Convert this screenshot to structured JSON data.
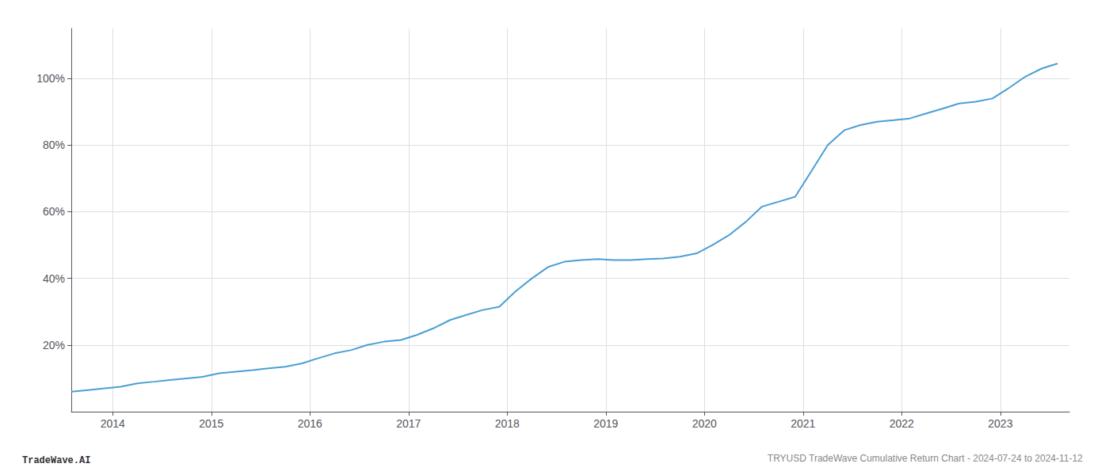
{
  "chart_data": {
    "type": "line",
    "title": "TRYUSD TradeWave Cumulative Return Chart - 2024-07-24 to 2024-11-12",
    "annotations": [
      "TradeWave.AI"
    ],
    "color": "#4a9fd4",
    "grid": true,
    "x": [
      2013.58,
      2013.75,
      2013.92,
      2014.08,
      2014.25,
      2014.42,
      2014.58,
      2014.75,
      2014.92,
      2015.08,
      2015.25,
      2015.42,
      2015.58,
      2015.75,
      2015.92,
      2016.08,
      2016.25,
      2016.42,
      2016.58,
      2016.75,
      2016.92,
      2017.08,
      2017.25,
      2017.42,
      2017.58,
      2017.75,
      2017.92,
      2018.08,
      2018.25,
      2018.42,
      2018.58,
      2018.75,
      2018.92,
      2019.08,
      2019.25,
      2019.42,
      2019.58,
      2019.75,
      2019.92,
      2020.08,
      2020.25,
      2020.42,
      2020.58,
      2020.75,
      2020.92,
      2021.08,
      2021.25,
      2021.42,
      2021.58,
      2021.75,
      2021.92,
      2022.08,
      2022.25,
      2022.42,
      2022.58,
      2022.75,
      2022.92,
      2023.08,
      2023.25,
      2023.42,
      2023.58
    ],
    "values": [
      6.0,
      6.5,
      7.0,
      7.5,
      8.5,
      9.0,
      9.5,
      10.0,
      10.5,
      11.5,
      12.0,
      12.5,
      13.0,
      13.5,
      14.5,
      16.0,
      17.5,
      18.5,
      20.0,
      21.0,
      21.5,
      23.0,
      25.0,
      27.5,
      29.0,
      30.5,
      31.5,
      36.0,
      40.0,
      43.5,
      45.0,
      45.5,
      45.8,
      45.5,
      45.5,
      45.8,
      46.0,
      46.5,
      47.5,
      50.0,
      53.0,
      57.0,
      61.5,
      63.0,
      64.5,
      72.0,
      80.0,
      84.5,
      86.0,
      87.0,
      87.5,
      88.0,
      89.5,
      91.0,
      92.5,
      93.0,
      94.0,
      97.0,
      100.5,
      103.0,
      104.5
    ],
    "xlim": [
      2013.58,
      2023.7
    ],
    "xticks": [
      2014,
      2015,
      2016,
      2017,
      2018,
      2019,
      2020,
      2021,
      2022,
      2023
    ],
    "ylim": [
      0,
      115
    ],
    "yticks": [
      {
        "value": 20,
        "label": "20%"
      },
      {
        "value": 40,
        "label": "40%"
      },
      {
        "value": 60,
        "label": "60%"
      },
      {
        "value": 80,
        "label": "80%"
      },
      {
        "value": 100,
        "label": "100%"
      }
    ]
  }
}
